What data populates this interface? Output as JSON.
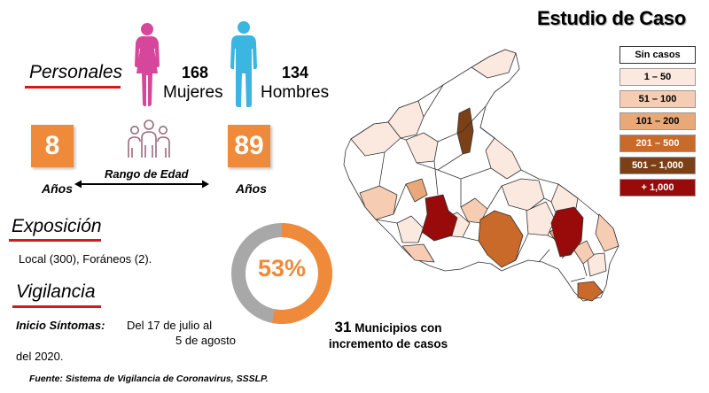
{
  "title": "Estudio de Caso",
  "personales": {
    "heading": "Personales",
    "women_count": "168",
    "women_label": "Mujeres",
    "men_count": "134",
    "men_label": "Hombres"
  },
  "age": {
    "min": "8",
    "max": "89",
    "unit_left": "Años",
    "unit_right": "Años",
    "range_label": "Rango de Edad"
  },
  "exposicion": {
    "heading": "Exposición",
    "text": "Local (300), Foráneos (2)."
  },
  "vigilancia": {
    "heading": "Vigilancia",
    "label": "Inicio Síntomas:",
    "line1": "Del 17 de julio al",
    "line2": "5 de agosto",
    "line3": "del 2020."
  },
  "gauge": {
    "percent_text": "53%",
    "value": 0.53
  },
  "municipios": {
    "count": "31",
    "line1_rest": "Municipios con",
    "line2": "incremento de casos"
  },
  "source": "Fuente: Sistema de Vigilancia de Coronavirus, SSSLP.",
  "legend": {
    "items": [
      {
        "label": "Sin casos",
        "color": "#ffffff",
        "text_color": "#000000"
      },
      {
        "label": "1 – 50",
        "color": "#fbe9df",
        "text_color": "#000000"
      },
      {
        "label": "51 – 100",
        "color": "#f6cdb3",
        "text_color": "#000000"
      },
      {
        "label": "101 – 200",
        "color": "#e9a878",
        "text_color": "#000000"
      },
      {
        "label": "201 – 500",
        "color": "#c9692a",
        "text_color": "#ffffff"
      },
      {
        "label": "501 – 1,000",
        "color": "#7b4016",
        "text_color": "#ffffff"
      },
      {
        "label": "+ 1,000",
        "color": "#990a0a",
        "text_color": "#ffffff"
      }
    ]
  },
  "colors": {
    "accent_orange": "#ef8a3a",
    "women": "#d6479c",
    "men": "#3bb6e0",
    "people_icon": "#9a6a7b",
    "underline": "#d11b1b",
    "gauge_gray": "#a8a8a8"
  }
}
